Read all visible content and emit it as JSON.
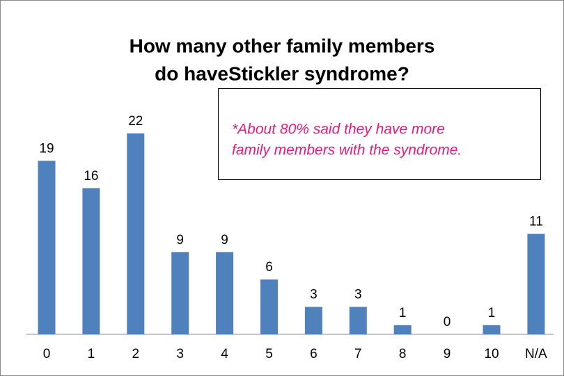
{
  "chart_data": {
    "type": "bar",
    "title": [
      "How many other family members",
      "do haveStickler syndrome?"
    ],
    "annotation": [
      "*About 80% said they have more",
      "family members with the syndrome."
    ],
    "categories": [
      "0",
      "1",
      "2",
      "3",
      "4",
      "5",
      "6",
      "7",
      "8",
      "9",
      "10",
      "N/A"
    ],
    "values": [
      19,
      16,
      22,
      9,
      9,
      6,
      3,
      3,
      1,
      0,
      1,
      11
    ],
    "color": "#4f81bd"
  }
}
